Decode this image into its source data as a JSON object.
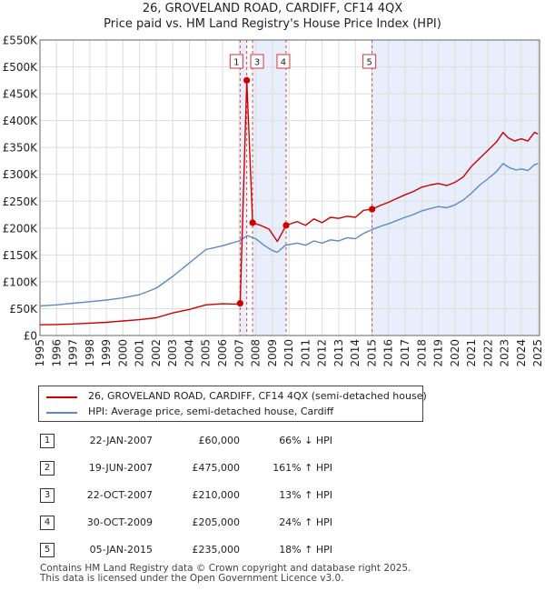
{
  "chart_data": {
    "type": "line",
    "title": "26, GROVELAND ROAD, CARDIFF, CF14 4QX",
    "subtitle": "Price paid vs. HM Land Registry's House Price Index (HPI)",
    "xlabel": "",
    "ylabel": "",
    "xlim": [
      1995,
      2025.1
    ],
    "ylim": [
      0,
      550000
    ],
    "y_ticks": [
      0,
      50000,
      100000,
      150000,
      200000,
      250000,
      300000,
      350000,
      400000,
      450000,
      500000,
      550000
    ],
    "y_tick_labels": [
      "£0",
      "£50K",
      "£100K",
      "£150K",
      "£200K",
      "£250K",
      "£300K",
      "£350K",
      "£400K",
      "£450K",
      "£500K",
      "£550K"
    ],
    "x_ticks": [
      1995,
      1996,
      1997,
      1998,
      1999,
      2000,
      2001,
      2002,
      2003,
      2004,
      2005,
      2006,
      2007,
      2008,
      2009,
      2010,
      2011,
      2012,
      2013,
      2014,
      2015,
      2016,
      2017,
      2018,
      2019,
      2020,
      2021,
      2022,
      2023,
      2024,
      2025
    ],
    "x_tick_labels": [
      "1995",
      "1996",
      "1997",
      "1998",
      "1999",
      "2000",
      "2001",
      "2002",
      "2003",
      "2004",
      "2005",
      "2006",
      "2007",
      "2008",
      "2009",
      "2010",
      "2011",
      "2012",
      "2013",
      "2014",
      "2015",
      "2016",
      "2017",
      "2018",
      "2019",
      "2020",
      "2021",
      "2022",
      "2023",
      "2024",
      "2025"
    ],
    "grid": true,
    "colors": {
      "property": "#cc0000",
      "hpi": "#5b8ac6",
      "shade": "#e8eefb",
      "grid": "#dddddd",
      "vline": "#dd4444"
    },
    "series": [
      {
        "name": "26, GROVELAND ROAD, CARDIFF, CF14 4QX (semi-detached house)",
        "x": [
          1995,
          1996,
          1997,
          1998,
          1999,
          2000,
          2001,
          2002,
          2003,
          2004,
          2005,
          2006,
          2006.9,
          2007.06,
          2007.06,
          2007.46,
          2007.46,
          2007.81,
          2007.81,
          2008.3,
          2008.8,
          2009.3,
          2009.83,
          2009.83,
          2010.5,
          2011,
          2011.5,
          2012,
          2012.5,
          2013,
          2013.5,
          2014,
          2014.5,
          2015.01,
          2015.01,
          2015.5,
          2016,
          2016.5,
          2017,
          2017.5,
          2018,
          2018.5,
          2019,
          2019.5,
          2020,
          2020.5,
          2021,
          2021.5,
          2022,
          2022.5,
          2022.9,
          2023.2,
          2023.6,
          2024,
          2024.4,
          2024.8,
          2025
        ],
        "values": [
          20000,
          20500,
          21500,
          23000,
          24500,
          27000,
          29500,
          33000,
          42000,
          48500,
          57000,
          59000,
          58500,
          60000,
          60000,
          475000,
          475000,
          210000,
          210000,
          205000,
          198000,
          175000,
          205000,
          205000,
          212000,
          205000,
          217000,
          210000,
          220000,
          218000,
          222000,
          220000,
          233000,
          235000,
          235000,
          242000,
          248000,
          255000,
          262000,
          268000,
          276000,
          280000,
          283000,
          279000,
          285000,
          295000,
          315000,
          330000,
          345000,
          360000,
          378000,
          368000,
          362000,
          366000,
          362000,
          378000,
          375000
        ]
      },
      {
        "name": "HPI: Average price, semi-detached house, Cardiff",
        "x": [
          1995,
          1996,
          1997,
          1998,
          1999,
          2000,
          2001,
          2002,
          2003,
          2004,
          2005,
          2006,
          2007,
          2007.5,
          2008,
          2008.5,
          2009,
          2009.3,
          2009.8,
          2010.5,
          2011,
          2011.5,
          2012,
          2012.5,
          2013,
          2013.5,
          2014,
          2014.5,
          2015,
          2015.5,
          2016,
          2016.5,
          2017,
          2017.5,
          2018,
          2018.5,
          2019,
          2019.5,
          2020,
          2020.5,
          2021,
          2021.5,
          2022,
          2022.5,
          2022.9,
          2023.3,
          2023.7,
          2024,
          2024.4,
          2024.8,
          2025
        ],
        "values": [
          55000,
          57000,
          60000,
          63000,
          66000,
          70000,
          76000,
          88000,
          110000,
          135000,
          160000,
          167000,
          176000,
          186000,
          180000,
          168000,
          158000,
          155000,
          168000,
          172000,
          168000,
          176000,
          172000,
          178000,
          176000,
          182000,
          180000,
          190000,
          197000,
          203000,
          208000,
          214000,
          220000,
          225000,
          232000,
          236000,
          240000,
          238000,
          243000,
          252000,
          265000,
          280000,
          292000,
          305000,
          320000,
          312000,
          308000,
          310000,
          307000,
          318000,
          320000
        ]
      }
    ],
    "transactions": [
      {
        "id": "1",
        "x": 2007.06,
        "value": 60000
      },
      {
        "id": "2",
        "x": 2007.46,
        "value": 475000
      },
      {
        "id": "3",
        "x": 2007.81,
        "value": 210000
      },
      {
        "id": "4",
        "x": 2009.83,
        "value": 205000
      },
      {
        "id": "5",
        "x": 2015.01,
        "value": 235000
      }
    ],
    "marker_labels": [
      "1",
      "3",
      "4",
      "5"
    ],
    "shaded_ranges": [
      [
        2007.06,
        2007.46
      ],
      [
        2007.81,
        2009.83
      ],
      [
        2015.01,
        2025.1
      ]
    ]
  },
  "legend": {
    "property": "26, GROVELAND ROAD, CARDIFF, CF14 4QX (semi-detached house)",
    "hpi": "HPI: Average price, semi-detached house, Cardiff"
  },
  "table": [
    {
      "id": "1",
      "date": "22-JAN-2007",
      "price": "£60,000",
      "pct": "66% ↓ HPI"
    },
    {
      "id": "2",
      "date": "19-JUN-2007",
      "price": "£475,000",
      "pct": "161% ↑ HPI"
    },
    {
      "id": "3",
      "date": "22-OCT-2007",
      "price": "£210,000",
      "pct": "13% ↑ HPI"
    },
    {
      "id": "4",
      "date": "30-OCT-2009",
      "price": "£205,000",
      "pct": "24% ↑ HPI"
    },
    {
      "id": "5",
      "date": "05-JAN-2015",
      "price": "£235,000",
      "pct": "18% ↑ HPI"
    }
  ],
  "footer": {
    "line1": "Contains HM Land Registry data © Crown copyright and database right 2025.",
    "line2": "This data is licensed under the Open Government Licence v3.0."
  }
}
